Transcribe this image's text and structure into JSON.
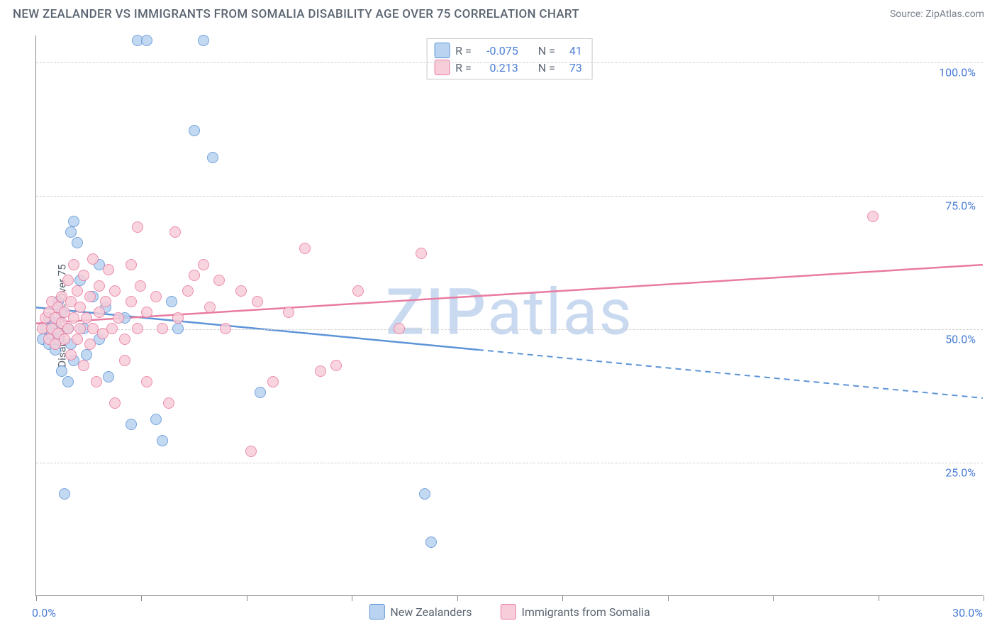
{
  "title": "NEW ZEALANDER VS IMMIGRANTS FROM SOMALIA DISABILITY AGE OVER 75 CORRELATION CHART",
  "source": "Source: ZipAtlas.com",
  "y_axis_title": "Disability Age Over 75",
  "watermark": {
    "bold": "ZIP",
    "light": "atlas",
    "color": "#c9d9f0"
  },
  "chart": {
    "type": "scatter-correlation",
    "xlim": [
      0,
      30
    ],
    "ylim": [
      0,
      105
    ],
    "x_ticks": [
      0,
      3.33,
      6.67,
      10,
      13.33,
      16.67,
      20,
      23.33,
      26.67,
      30
    ],
    "x_tick_labels": {
      "0": "0.0%",
      "30": "30.0%"
    },
    "y_grid": [
      25,
      50,
      75,
      100
    ],
    "y_tick_labels": {
      "25": "25.0%",
      "50": "50.0%",
      "75": "75.0%",
      "100": "100.0%"
    },
    "background": "#ffffff",
    "grid_color": "#cfcfcf",
    "axis_color": "#888888",
    "label_color": "#4a7dd6",
    "text_color": "#5a6470",
    "marker_radius": 8,
    "marker_stroke_width": 1.3,
    "series": [
      {
        "key": "nz",
        "label": "New Zealanders",
        "fill": "#b9d3f0",
        "stroke": "#5d94d8",
        "R": "-0.075",
        "N": "41",
        "trend": {
          "y_at_x0": 54,
          "y_at_x30": 37,
          "solid_until_x": 14
        },
        "points": [
          [
            0.2,
            48
          ],
          [
            0.3,
            50
          ],
          [
            0.4,
            47
          ],
          [
            0.4,
            52
          ],
          [
            0.5,
            49
          ],
          [
            0.6,
            46
          ],
          [
            0.6,
            51
          ],
          [
            0.7,
            48
          ],
          [
            0.7,
            55
          ],
          [
            0.8,
            42
          ],
          [
            0.8,
            53
          ],
          [
            0.9,
            19
          ],
          [
            1.0,
            40
          ],
          [
            1.0,
            50
          ],
          [
            1.1,
            47
          ],
          [
            1.1,
            68
          ],
          [
            1.2,
            44
          ],
          [
            1.2,
            70
          ],
          [
            1.4,
            59
          ],
          [
            1.5,
            50
          ],
          [
            1.6,
            45
          ],
          [
            1.8,
            56
          ],
          [
            2.0,
            62
          ],
          [
            2.0,
            48
          ],
          [
            2.2,
            54
          ],
          [
            2.3,
            41
          ],
          [
            2.8,
            52
          ],
          [
            3.0,
            32
          ],
          [
            3.2,
            104
          ],
          [
            3.5,
            104
          ],
          [
            4.0,
            29
          ],
          [
            4.3,
            55
          ],
          [
            4.5,
            50
          ],
          [
            5.0,
            87
          ],
          [
            5.3,
            104
          ],
          [
            5.6,
            82
          ],
          [
            7.1,
            38
          ],
          [
            12.3,
            19
          ],
          [
            12.5,
            10
          ],
          [
            3.8,
            33
          ],
          [
            1.3,
            66
          ]
        ]
      },
      {
        "key": "som",
        "label": "Immigrants from Somalia",
        "fill": "#f7cdd9",
        "stroke": "#e97ba1",
        "R": "0.213",
        "N": "73",
        "trend": {
          "y_at_x0": 51,
          "y_at_x30": 62,
          "solid_until_x": 30
        },
        "points": [
          [
            0.2,
            50
          ],
          [
            0.3,
            52
          ],
          [
            0.4,
            48
          ],
          [
            0.4,
            53
          ],
          [
            0.5,
            50
          ],
          [
            0.5,
            55
          ],
          [
            0.6,
            47
          ],
          [
            0.6,
            52
          ],
          [
            0.7,
            54
          ],
          [
            0.7,
            49
          ],
          [
            0.8,
            51
          ],
          [
            0.8,
            56
          ],
          [
            0.9,
            48
          ],
          [
            0.9,
            53
          ],
          [
            1.0,
            50
          ],
          [
            1.0,
            59
          ],
          [
            1.1,
            45
          ],
          [
            1.1,
            55
          ],
          [
            1.2,
            52
          ],
          [
            1.2,
            62
          ],
          [
            1.3,
            48
          ],
          [
            1.3,
            57
          ],
          [
            1.4,
            50
          ],
          [
            1.4,
            54
          ],
          [
            1.5,
            43
          ],
          [
            1.5,
            60
          ],
          [
            1.6,
            52
          ],
          [
            1.7,
            47
          ],
          [
            1.7,
            56
          ],
          [
            1.8,
            50
          ],
          [
            1.8,
            63
          ],
          [
            1.9,
            40
          ],
          [
            2.0,
            53
          ],
          [
            2.0,
            58
          ],
          [
            2.1,
            49
          ],
          [
            2.2,
            55
          ],
          [
            2.3,
            61
          ],
          [
            2.4,
            50
          ],
          [
            2.5,
            36
          ],
          [
            2.5,
            57
          ],
          [
            2.6,
            52
          ],
          [
            2.8,
            48
          ],
          [
            2.8,
            44
          ],
          [
            3.0,
            55
          ],
          [
            3.0,
            62
          ],
          [
            3.2,
            50
          ],
          [
            3.3,
            58
          ],
          [
            3.5,
            53
          ],
          [
            3.5,
            40
          ],
          [
            3.8,
            56
          ],
          [
            4.0,
            50
          ],
          [
            4.2,
            36
          ],
          [
            4.4,
            68
          ],
          [
            4.5,
            52
          ],
          [
            4.8,
            57
          ],
          [
            5.0,
            60
          ],
          [
            5.3,
            62
          ],
          [
            5.5,
            54
          ],
          [
            5.8,
            59
          ],
          [
            6.0,
            50
          ],
          [
            6.5,
            57
          ],
          [
            6.8,
            27
          ],
          [
            7.0,
            55
          ],
          [
            7.5,
            40
          ],
          [
            8.0,
            53
          ],
          [
            8.5,
            65
          ],
          [
            9.0,
            42
          ],
          [
            9.5,
            43
          ],
          [
            10.2,
            57
          ],
          [
            11.5,
            50
          ],
          [
            12.2,
            64
          ],
          [
            26.5,
            71
          ],
          [
            3.2,
            69
          ]
        ]
      }
    ]
  },
  "corr_legend_prefix_R": "R =",
  "corr_legend_prefix_N": "N ="
}
